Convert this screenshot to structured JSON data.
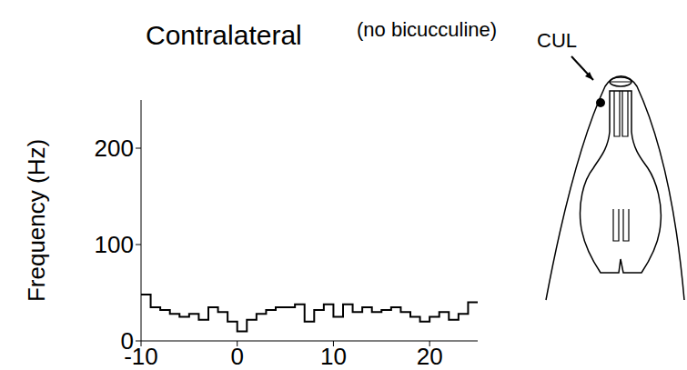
{
  "chart_data": {
    "type": "histogram",
    "title": "Contralateral",
    "subtitle": "(no bicucculine)",
    "y_label": "Frequency (Hz)",
    "bins": [
      -10,
      -9,
      -8,
      -7,
      -6,
      -5,
      -4,
      -3,
      -2,
      -1,
      0,
      1,
      2,
      3,
      4,
      5,
      6,
      7,
      8,
      9,
      10,
      11,
      12,
      13,
      14,
      15,
      16,
      17,
      18,
      19,
      20,
      21,
      22,
      23,
      24,
      25
    ],
    "values": [
      48,
      35,
      32,
      28,
      25,
      28,
      22,
      35,
      30,
      20,
      10,
      22,
      28,
      32,
      35,
      35,
      38,
      20,
      32,
      38,
      25,
      38,
      30,
      35,
      30,
      32,
      35,
      30,
      25,
      20,
      25,
      30,
      22,
      28,
      40
    ],
    "color": "#000000",
    "xlim": [
      -10,
      25
    ],
    "xticks": [
      -10,
      0,
      10,
      20
    ],
    "ylim": [
      0,
      250
    ],
    "yticks": [
      0,
      100,
      200
    ]
  },
  "diagram": {
    "label": "CUL"
  }
}
